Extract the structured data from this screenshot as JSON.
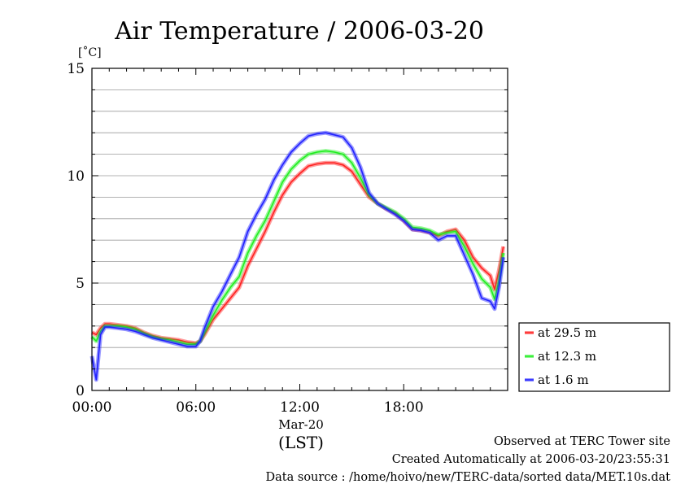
{
  "chart_data": {
    "type": "line",
    "title": "Air Temperature / 2006-03-20",
    "ylabel": "[˚C]",
    "xlabel": "(LST)",
    "date_label": "Mar-20",
    "x_ticks": [
      "00:00",
      "06:00",
      "12:00",
      "18:00"
    ],
    "y_ticks": [
      "0",
      "5",
      "10",
      "15"
    ],
    "xlim": [
      0,
      24
    ],
    "ylim": [
      0,
      15
    ],
    "grid": true,
    "legend": "right",
    "x": [
      0.0,
      0.25,
      0.5,
      0.75,
      1.0,
      1.5,
      2.0,
      2.5,
      3.0,
      3.5,
      4.0,
      4.5,
      5.0,
      5.5,
      6.0,
      6.25,
      6.5,
      7.0,
      7.5,
      8.0,
      8.5,
      9.0,
      9.5,
      10.0,
      10.5,
      11.0,
      11.5,
      12.0,
      12.5,
      13.0,
      13.5,
      14.0,
      14.5,
      15.0,
      15.5,
      16.0,
      16.5,
      17.0,
      17.5,
      18.0,
      18.5,
      19.0,
      19.5,
      20.0,
      20.5,
      21.0,
      21.5,
      22.0,
      22.5,
      23.0,
      23.25,
      23.5,
      23.75
    ],
    "series": [
      {
        "name": "at 29.5 m",
        "color": "#ff2020",
        "values": [
          2.7,
          2.6,
          2.9,
          3.1,
          3.1,
          3.05,
          3.0,
          2.9,
          2.7,
          2.55,
          2.45,
          2.4,
          2.35,
          2.25,
          2.2,
          2.3,
          2.6,
          3.3,
          3.8,
          4.3,
          4.8,
          5.8,
          6.6,
          7.4,
          8.3,
          9.1,
          9.7,
          10.1,
          10.45,
          10.55,
          10.6,
          10.6,
          10.5,
          10.2,
          9.6,
          9.0,
          8.7,
          8.45,
          8.25,
          7.9,
          7.5,
          7.45,
          7.35,
          7.2,
          7.4,
          7.5,
          7.0,
          6.2,
          5.7,
          5.35,
          4.7,
          5.6,
          6.7
        ]
      },
      {
        "name": "at 12.3 m",
        "color": "#20ee20",
        "values": [
          2.5,
          2.3,
          2.75,
          3.0,
          3.0,
          3.0,
          2.95,
          2.85,
          2.65,
          2.5,
          2.4,
          2.35,
          2.25,
          2.15,
          2.15,
          2.3,
          2.7,
          3.5,
          4.2,
          4.8,
          5.3,
          6.4,
          7.2,
          7.9,
          8.8,
          9.7,
          10.3,
          10.7,
          11.0,
          11.1,
          11.15,
          11.1,
          11.0,
          10.6,
          9.9,
          9.1,
          8.7,
          8.5,
          8.3,
          8.0,
          7.6,
          7.55,
          7.45,
          7.25,
          7.35,
          7.4,
          6.7,
          5.9,
          5.2,
          4.8,
          4.25,
          5.1,
          6.4
        ]
      },
      {
        "name": "at 1.6 m",
        "color": "#2020ff",
        "values": [
          1.6,
          0.5,
          2.6,
          2.95,
          2.95,
          2.9,
          2.85,
          2.75,
          2.6,
          2.45,
          2.35,
          2.25,
          2.15,
          2.05,
          2.05,
          2.3,
          2.9,
          3.9,
          4.6,
          5.4,
          6.2,
          7.4,
          8.2,
          8.9,
          9.8,
          10.5,
          11.1,
          11.5,
          11.85,
          11.95,
          12.0,
          11.9,
          11.8,
          11.3,
          10.4,
          9.2,
          8.7,
          8.45,
          8.2,
          7.9,
          7.5,
          7.45,
          7.35,
          7.0,
          7.2,
          7.2,
          6.3,
          5.4,
          4.3,
          4.15,
          3.8,
          4.8,
          6.2
        ]
      }
    ]
  },
  "footer": {
    "line1": "Observed at TERC Tower site",
    "line2": "Created Automatically at 2006-03-20/23:55:31",
    "line3": "Data source : /home/hoivo/new/TERC-data/sorted  data/MET.10s.dat"
  }
}
